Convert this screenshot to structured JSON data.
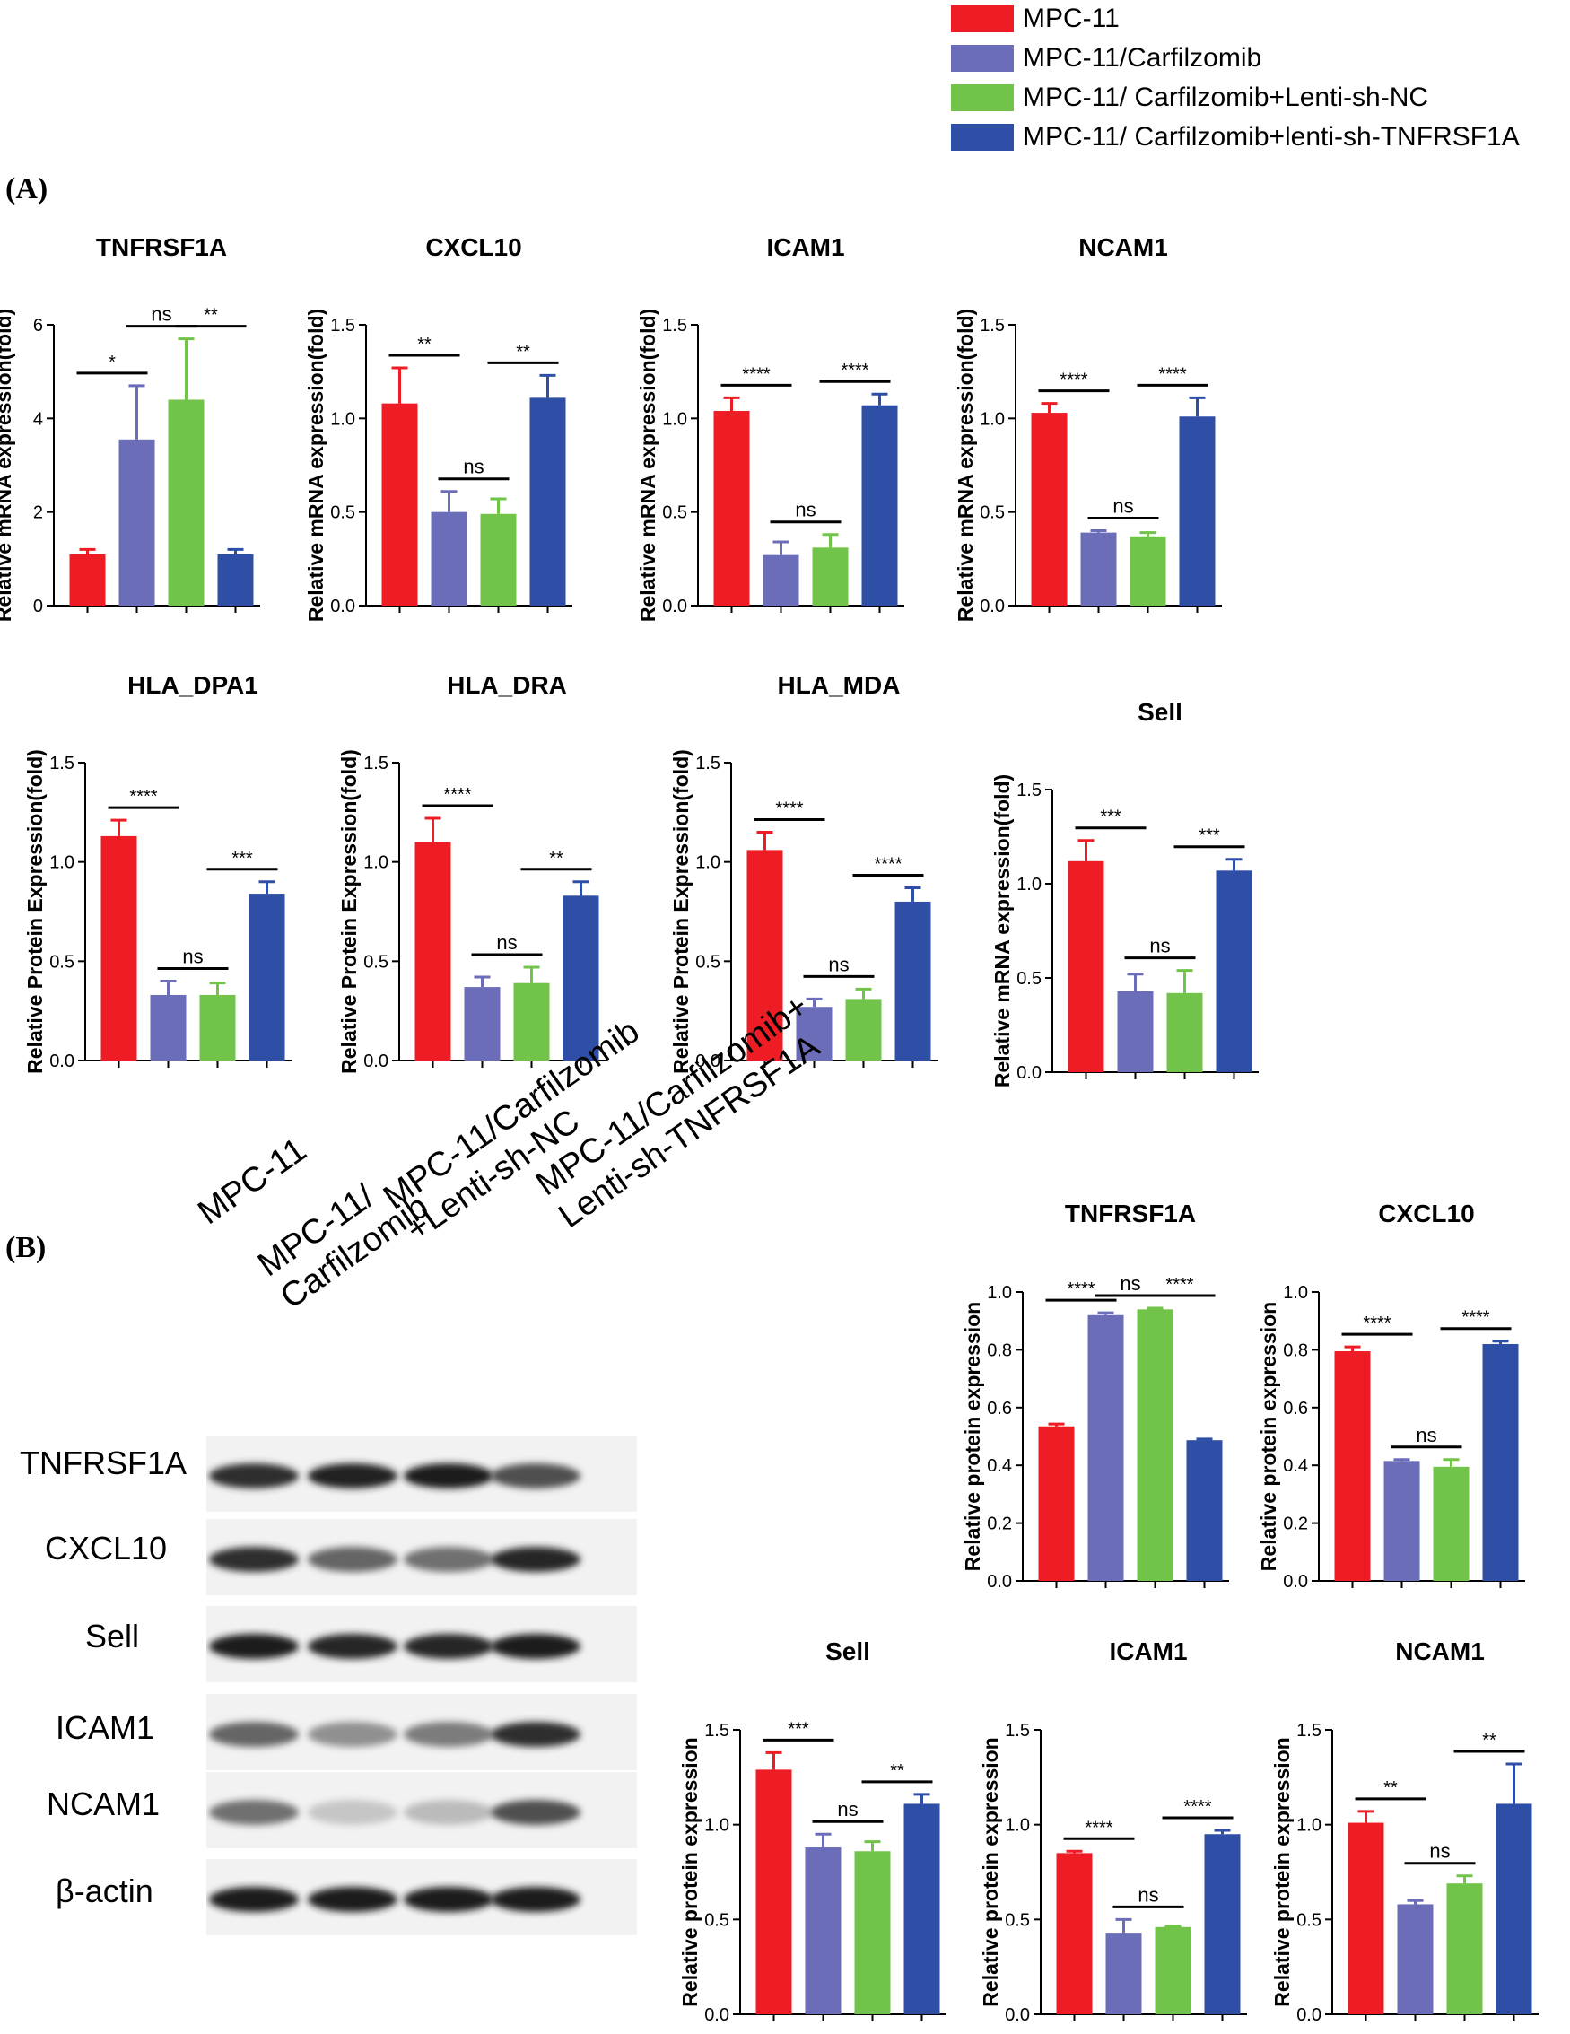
{
  "colors": {
    "MPC-11": "#ee1c25",
    "Carfilzomib": "#6b6db8",
    "Lenti-sh-NC": "#72c34a",
    "Lenti-sh-TNFRSF1A": "#2f4fa6"
  },
  "legend": [
    {
      "label": "MPC-11",
      "color": "#ee1c25"
    },
    {
      "label": "MPC-11/Carfilzomib",
      "color": "#6b6db8"
    },
    {
      "label": "MPC-11/ Carfilzomib+Lenti-sh-NC",
      "color": "#72c34a"
    },
    {
      "label": "MPC-11/ Carfilzomib+lenti-sh-TNFRSF1A",
      "color": "#2f4fa6"
    }
  ],
  "section_a": "(A)",
  "section_b": "(B)",
  "chart_data": [
    {
      "type": "bar",
      "title": "TNFRSF1A",
      "ylabel": "Relative mRNA expression(fold)",
      "ylim": [
        0,
        6
      ],
      "yticks": [
        "0",
        "2",
        "4",
        "6"
      ],
      "values": [
        1.1,
        3.55,
        4.4,
        1.1
      ],
      "errors": [
        0.1,
        1.15,
        1.3,
        0.1
      ],
      "annotations": [
        {
          "from": 0,
          "to": 1,
          "label": "*"
        },
        {
          "from": 1,
          "to": 2,
          "label": "ns"
        },
        {
          "from": 2,
          "to": 3,
          "label": "**"
        }
      ]
    },
    {
      "type": "bar",
      "title": "CXCL10",
      "ylabel": "Relative mRNA expression(fold)",
      "ylim": [
        0,
        1.5
      ],
      "yticks": [
        "0.0",
        "0.5",
        "1.0",
        "1.5"
      ],
      "values": [
        1.08,
        0.5,
        0.49,
        1.11
      ],
      "errors": [
        0.19,
        0.11,
        0.08,
        0.12
      ],
      "annotations": [
        {
          "from": 0,
          "to": 1,
          "label": "**"
        },
        {
          "from": 1,
          "to": 2,
          "label": "ns"
        },
        {
          "from": 2,
          "to": 3,
          "label": "**"
        }
      ]
    },
    {
      "type": "bar",
      "title": "ICAM1",
      "ylabel": "Relative mRNA expression(fold)",
      "ylim": [
        0,
        1.5
      ],
      "yticks": [
        "0.0",
        "0.5",
        "1.0",
        "1.5"
      ],
      "values": [
        1.04,
        0.27,
        0.31,
        1.07
      ],
      "errors": [
        0.07,
        0.07,
        0.07,
        0.06
      ],
      "annotations": [
        {
          "from": 0,
          "to": 1,
          "label": "****"
        },
        {
          "from": 1,
          "to": 2,
          "label": "ns"
        },
        {
          "from": 2,
          "to": 3,
          "label": "****"
        }
      ]
    },
    {
      "type": "bar",
      "title": "NCAM1",
      "ylabel": "Relative mRNA expression(fold)",
      "ylim": [
        0,
        1.5
      ],
      "yticks": [
        "0.0",
        "0.5",
        "1.0",
        "1.5"
      ],
      "values": [
        1.03,
        0.39,
        0.37,
        1.01
      ],
      "errors": [
        0.05,
        0.01,
        0.02,
        0.1
      ],
      "annotations": [
        {
          "from": 0,
          "to": 1,
          "label": "****"
        },
        {
          "from": 1,
          "to": 2,
          "label": "ns"
        },
        {
          "from": 2,
          "to": 3,
          "label": "****"
        }
      ]
    },
    {
      "type": "bar",
      "title": "HLA_DPA1",
      "ylabel": "Relative Protein Expression(fold)",
      "ylim": [
        0,
        1.5
      ],
      "yticks": [
        "0.0",
        "0.5",
        "1.0",
        "1.5"
      ],
      "values": [
        1.13,
        0.33,
        0.33,
        0.84
      ],
      "errors": [
        0.08,
        0.07,
        0.06,
        0.06
      ],
      "annotations": [
        {
          "from": 0,
          "to": 1,
          "label": "****"
        },
        {
          "from": 1,
          "to": 2,
          "label": "ns"
        },
        {
          "from": 2,
          "to": 3,
          "label": "***"
        }
      ]
    },
    {
      "type": "bar",
      "title": "HLA_DRA",
      "ylabel": "Relative Protein Expression(fold)",
      "ylim": [
        0,
        1.5
      ],
      "yticks": [
        "0.0",
        "0.5",
        "1.0",
        "1.5"
      ],
      "values": [
        1.1,
        0.37,
        0.39,
        0.83
      ],
      "errors": [
        0.12,
        0.05,
        0.08,
        0.07
      ],
      "annotations": [
        {
          "from": 0,
          "to": 1,
          "label": "****"
        },
        {
          "from": 1,
          "to": 2,
          "label": "ns"
        },
        {
          "from": 2,
          "to": 3,
          "label": "**"
        }
      ]
    },
    {
      "type": "bar",
      "title": "HLA_MDA",
      "ylabel": "Relative Protein Expression(fold)",
      "ylim": [
        0,
        1.5
      ],
      "yticks": [
        "0.0",
        "0.5",
        "1.0",
        "1.5"
      ],
      "values": [
        1.06,
        0.27,
        0.31,
        0.8
      ],
      "errors": [
        0.09,
        0.04,
        0.05,
        0.07
      ],
      "annotations": [
        {
          "from": 0,
          "to": 1,
          "label": "****"
        },
        {
          "from": 1,
          "to": 2,
          "label": "ns"
        },
        {
          "from": 2,
          "to": 3,
          "label": "****"
        }
      ]
    },
    {
      "type": "bar",
      "title": "Sell",
      "ylabel": "Relative mRNA expression(fold)",
      "ylim": [
        0,
        1.5
      ],
      "yticks": [
        "0.0",
        "0.5",
        "1.0",
        "1.5"
      ],
      "values": [
        1.12,
        0.43,
        0.42,
        1.07
      ],
      "errors": [
        0.11,
        0.09,
        0.12,
        0.06
      ],
      "annotations": [
        {
          "from": 0,
          "to": 1,
          "label": "***"
        },
        {
          "from": 1,
          "to": 2,
          "label": "ns"
        },
        {
          "from": 2,
          "to": 3,
          "label": "***"
        }
      ]
    },
    {
      "type": "bar",
      "title": "TNFRSF1A",
      "ylabel": "Relative protein expression",
      "ylim": [
        0,
        1.0
      ],
      "yticks": [
        "0.0",
        "0.2",
        "0.4",
        "0.6",
        "0.8",
        "1.0"
      ],
      "values": [
        0.535,
        0.92,
        0.94,
        0.487
      ],
      "errors": [
        0.008,
        0.008,
        0.004,
        0.004
      ],
      "annotations": [
        {
          "from": 0,
          "to": 1,
          "label": "****"
        },
        {
          "from": 1,
          "to": 2,
          "label": "ns"
        },
        {
          "from": 2,
          "to": 3,
          "label": "****"
        }
      ]
    },
    {
      "type": "bar",
      "title": "CXCL10",
      "ylabel": "Relative protein expression",
      "ylim": [
        0,
        1.0
      ],
      "yticks": [
        "0.0",
        "0.2",
        "0.4",
        "0.6",
        "0.8",
        "1.0"
      ],
      "values": [
        0.795,
        0.415,
        0.395,
        0.82
      ],
      "errors": [
        0.015,
        0.005,
        0.025,
        0.01
      ],
      "annotations": [
        {
          "from": 0,
          "to": 1,
          "label": "****"
        },
        {
          "from": 1,
          "to": 2,
          "label": "ns"
        },
        {
          "from": 2,
          "to": 3,
          "label": "****"
        }
      ]
    },
    {
      "type": "bar",
      "title": "Sell",
      "ylabel": "Relative protein expression",
      "ylim": [
        0,
        1.5
      ],
      "yticks": [
        "0.0",
        "0.5",
        "1.0",
        "1.5"
      ],
      "values": [
        1.29,
        0.88,
        0.86,
        1.11
      ],
      "errors": [
        0.09,
        0.07,
        0.05,
        0.05
      ],
      "annotations": [
        {
          "from": 0,
          "to": 1,
          "label": "***"
        },
        {
          "from": 1,
          "to": 2,
          "label": "ns"
        },
        {
          "from": 2,
          "to": 3,
          "label": "**"
        }
      ]
    },
    {
      "type": "bar",
      "title": "ICAM1",
      "ylabel": "Relative protein expression",
      "ylim": [
        0,
        1.5
      ],
      "yticks": [
        "0.0",
        "0.5",
        "1.0",
        "1.5"
      ],
      "values": [
        0.85,
        0.43,
        0.46,
        0.95
      ],
      "errors": [
        0.01,
        0.07,
        0.005,
        0.02
      ],
      "annotations": [
        {
          "from": 0,
          "to": 1,
          "label": "****"
        },
        {
          "from": 1,
          "to": 2,
          "label": "ns"
        },
        {
          "from": 2,
          "to": 3,
          "label": "****"
        }
      ]
    },
    {
      "type": "bar",
      "title": "NCAM1",
      "ylabel": "Relative protein expression",
      "ylim": [
        0,
        1.5
      ],
      "yticks": [
        "0.0",
        "0.5",
        "1.0",
        "1.5"
      ],
      "values": [
        1.01,
        0.58,
        0.69,
        1.11
      ],
      "errors": [
        0.06,
        0.02,
        0.04,
        0.21
      ],
      "annotations": [
        {
          "from": 0,
          "to": 1,
          "label": "**"
        },
        {
          "from": 1,
          "to": 2,
          "label": "ns"
        },
        {
          "from": 2,
          "to": 3,
          "label": "**"
        }
      ]
    }
  ],
  "western_blot": {
    "lanes": [
      "MPC-11",
      "MPC-11/\nCarfilzomib",
      "MPC-11/Carfilzomib\n+Lenti-sh-NC",
      "MPC-11/Carfilzomib+\nLenti-sh-TNFRSF1A"
    ],
    "lane_line1": [
      "MPC-11",
      "MPC-11/",
      "MPC-11/Carfilzomib",
      "MPC-11/Carfilzomib+"
    ],
    "lane_line2": [
      "",
      "Carfilzomib",
      "+Lenti-sh-NC",
      "Lenti-sh-TNFRSF1A"
    ],
    "rows": [
      "TNFRSF1A",
      "CXCL10",
      "Sell",
      "ICAM1",
      "NCAM1",
      "β-actin"
    ],
    "band_intensity": [
      [
        0.85,
        0.92,
        0.95,
        0.7
      ],
      [
        0.85,
        0.6,
        0.55,
        0.9
      ],
      [
        0.95,
        0.9,
        0.9,
        0.95
      ],
      [
        0.6,
        0.4,
        0.5,
        0.85
      ],
      [
        0.55,
        0.15,
        0.2,
        0.7
      ],
      [
        0.95,
        0.95,
        0.95,
        0.95
      ]
    ]
  }
}
